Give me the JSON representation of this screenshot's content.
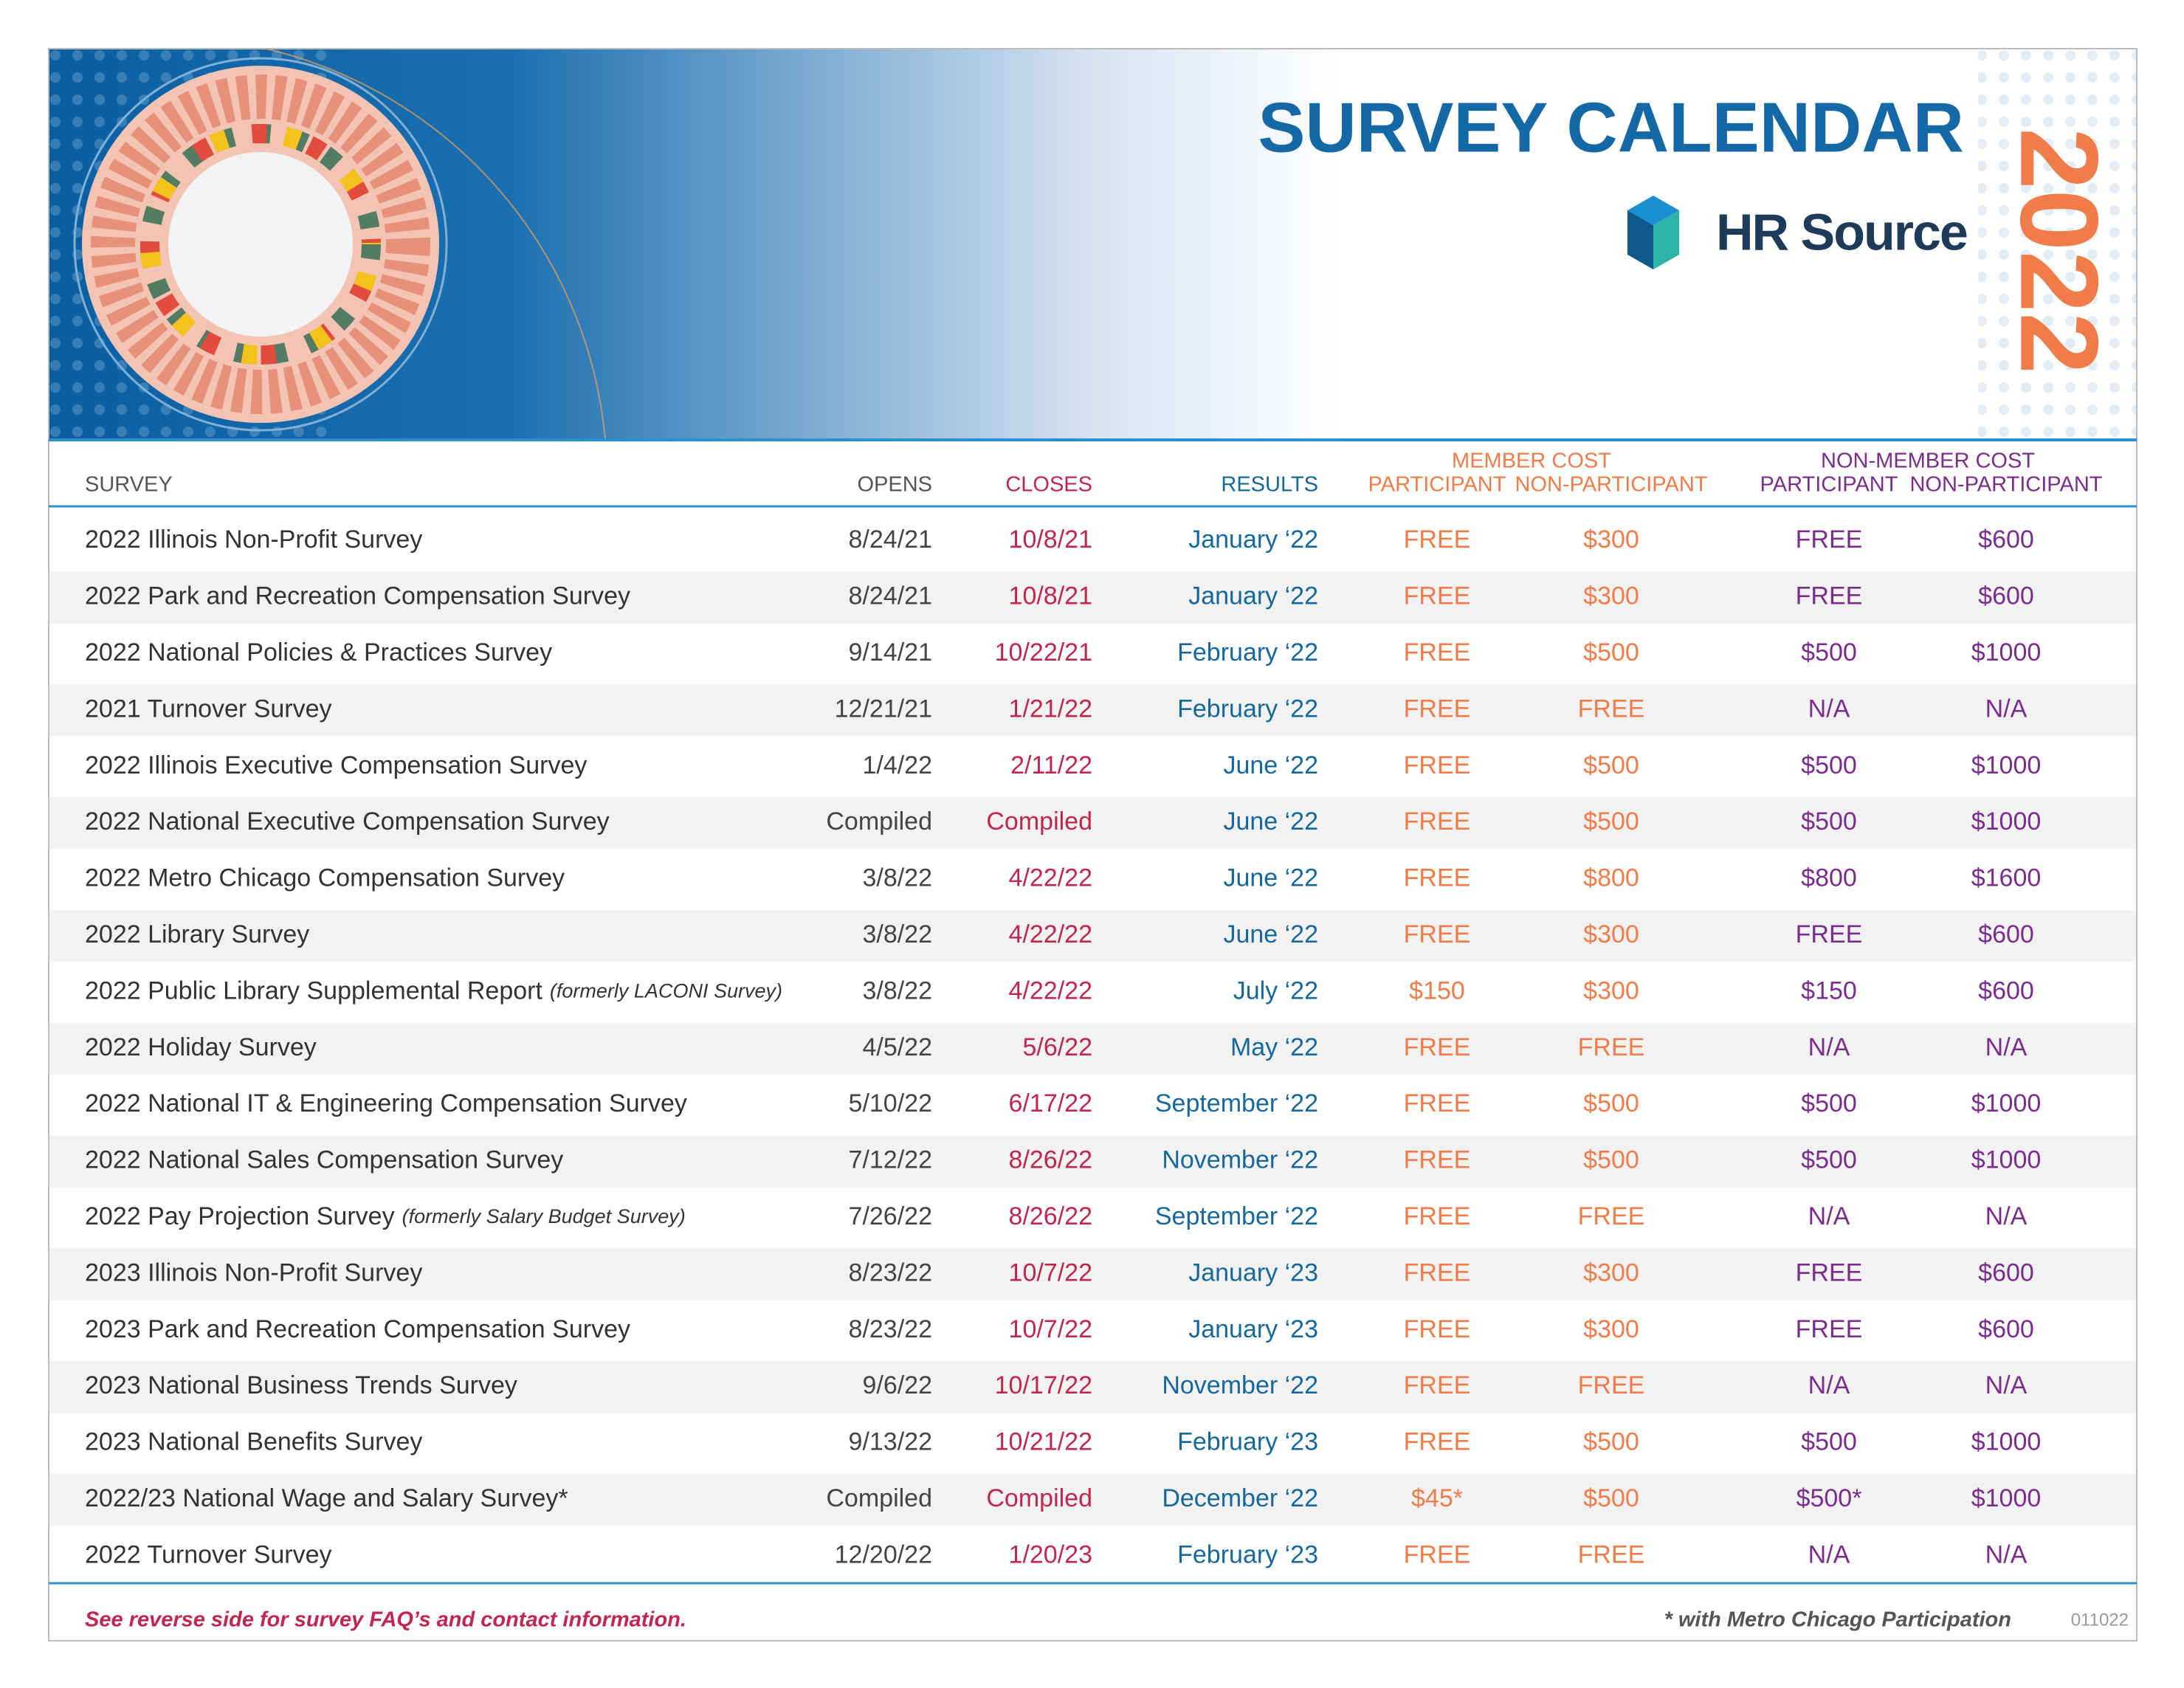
{
  "header": {
    "title": "SURVEY CALENDAR",
    "year": "2022",
    "logo": "HR Source"
  },
  "table": {
    "groups": {
      "member": "MEMBER COST",
      "nonmember": "NON-MEMBER COST"
    },
    "columns": [
      "SURVEY",
      "OPENS",
      "CLOSES",
      "RESULTS",
      "PARTICIPANT",
      "NON-PARTICIPANT",
      "PARTICIPANT",
      "NON-PARTICIPANT"
    ],
    "rows": [
      {
        "survey": "2022 Illinois Non-Profit Survey",
        "opens": "8/24/21",
        "closes": "10/8/21",
        "results": "January ‘22",
        "member_participant": "FREE",
        "member_nonparticipant": "$300",
        "nonmember_participant": "FREE",
        "nonmember_nonparticipant": "$600"
      },
      {
        "survey": "2022 Park and Recreation Compensation Survey",
        "opens": "8/24/21",
        "closes": "10/8/21",
        "results": "January ‘22",
        "member_participant": "FREE",
        "member_nonparticipant": "$300",
        "nonmember_participant": "FREE",
        "nonmember_nonparticipant": "$600"
      },
      {
        "survey": "2022 National Policies & Practices Survey",
        "opens": "9/14/21",
        "closes": "10/22/21",
        "results": "February ‘22",
        "member_participant": "FREE",
        "member_nonparticipant": "$500",
        "nonmember_participant": "$500",
        "nonmember_nonparticipant": "$1000"
      },
      {
        "survey": "2021 Turnover Survey",
        "opens": "12/21/21",
        "closes": "1/21/22",
        "results": "February ‘22",
        "member_participant": "FREE",
        "member_nonparticipant": "FREE",
        "nonmember_participant": "N/A",
        "nonmember_nonparticipant": "N/A"
      },
      {
        "survey": "2022 Illinois Executive Compensation Survey",
        "opens": "1/4/22",
        "closes": "2/11/22",
        "results": "June ‘22",
        "member_participant": "FREE",
        "member_nonparticipant": "$500",
        "nonmember_participant": "$500",
        "nonmember_nonparticipant": "$1000"
      },
      {
        "survey": "2022 National Executive Compensation Survey",
        "opens": "Compiled",
        "closes": "Compiled",
        "results": "June ‘22",
        "member_participant": "FREE",
        "member_nonparticipant": "$500",
        "nonmember_participant": "$500",
        "nonmember_nonparticipant": "$1000"
      },
      {
        "survey": "2022 Metro Chicago Compensation Survey",
        "opens": "3/8/22",
        "closes": "4/22/22",
        "results": "June ‘22",
        "member_participant": "FREE",
        "member_nonparticipant": "$800",
        "nonmember_participant": "$800",
        "nonmember_nonparticipant": "$1600"
      },
      {
        "survey": "2022 Library Survey",
        "opens": "3/8/22",
        "closes": "4/22/22",
        "results": "June ‘22",
        "member_participant": "FREE",
        "member_nonparticipant": "$300",
        "nonmember_participant": "FREE",
        "nonmember_nonparticipant": "$600"
      },
      {
        "survey": "2022 Public Library Supplemental Report",
        "note": "(formerly LACONI Survey)",
        "opens": "3/8/22",
        "closes": "4/22/22",
        "results": "July ‘22",
        "member_participant": "$150",
        "member_nonparticipant": "$300",
        "nonmember_participant": "$150",
        "nonmember_nonparticipant": "$600"
      },
      {
        "survey": "2022 Holiday Survey",
        "opens": "4/5/22",
        "closes": "5/6/22",
        "results": "May ‘22",
        "member_participant": "FREE",
        "member_nonparticipant": "FREE",
        "nonmember_participant": "N/A",
        "nonmember_nonparticipant": "N/A"
      },
      {
        "survey": "2022 National IT & Engineering Compensation Survey",
        "opens": "5/10/22",
        "closes": "6/17/22",
        "results": "September ‘22",
        "member_participant": "FREE",
        "member_nonparticipant": "$500",
        "nonmember_participant": "$500",
        "nonmember_nonparticipant": "$1000"
      },
      {
        "survey": "2022 National Sales Compensation Survey",
        "opens": "7/12/22",
        "closes": "8/26/22",
        "results": "November ‘22",
        "member_participant": "FREE",
        "member_nonparticipant": "$500",
        "nonmember_participant": "$500",
        "nonmember_nonparticipant": "$1000"
      },
      {
        "survey": "2022 Pay Projection Survey",
        "note": "(formerly Salary Budget Survey)",
        "opens": "7/26/22",
        "closes": "8/26/22",
        "results": "September ‘22",
        "member_participant": "FREE",
        "member_nonparticipant": "FREE",
        "nonmember_participant": "N/A",
        "nonmember_nonparticipant": "N/A"
      },
      {
        "survey": "2023 Illinois Non-Profit Survey",
        "opens": "8/23/22",
        "closes": "10/7/22",
        "results": "January ‘23",
        "member_participant": "FREE",
        "member_nonparticipant": "$300",
        "nonmember_participant": "FREE",
        "nonmember_nonparticipant": "$600"
      },
      {
        "survey": "2023 Park and Recreation Compensation Survey",
        "opens": "8/23/22",
        "closes": "10/7/22",
        "results": "January ‘23",
        "member_participant": "FREE",
        "member_nonparticipant": "$300",
        "nonmember_participant": "FREE",
        "nonmember_nonparticipant": "$600"
      },
      {
        "survey": "2023 National Business Trends Survey",
        "opens": "9/6/22",
        "closes": "10/17/22",
        "results": "November ‘22",
        "member_participant": "FREE",
        "member_nonparticipant": "FREE",
        "nonmember_participant": "N/A",
        "nonmember_nonparticipant": "N/A"
      },
      {
        "survey": "2023 National Benefits Survey",
        "opens": "9/13/22",
        "closes": "10/21/22",
        "results": "February ‘23",
        "member_participant": "FREE",
        "member_nonparticipant": "$500",
        "nonmember_participant": "$500",
        "nonmember_nonparticipant": "$1000"
      },
      {
        "survey": "2022/23 National Wage and Salary Survey*",
        "opens": "Compiled",
        "closes": "Compiled",
        "results": "December ‘22",
        "member_participant": "$45*",
        "member_nonparticipant": "$500",
        "nonmember_participant": "$500*",
        "nonmember_nonparticipant": "$1000"
      },
      {
        "survey": "2022 Turnover Survey",
        "opens": "12/20/22",
        "closes": "1/20/23",
        "results": "February ‘23",
        "member_participant": "FREE",
        "member_nonparticipant": "FREE",
        "nonmember_participant": "N/A",
        "nonmember_nonparticipant": "N/A"
      }
    ]
  },
  "footer": {
    "left": "See reverse side for survey FAQ’s and contact information.",
    "right": "* with Metro Chicago Participation",
    "code": "011022"
  }
}
